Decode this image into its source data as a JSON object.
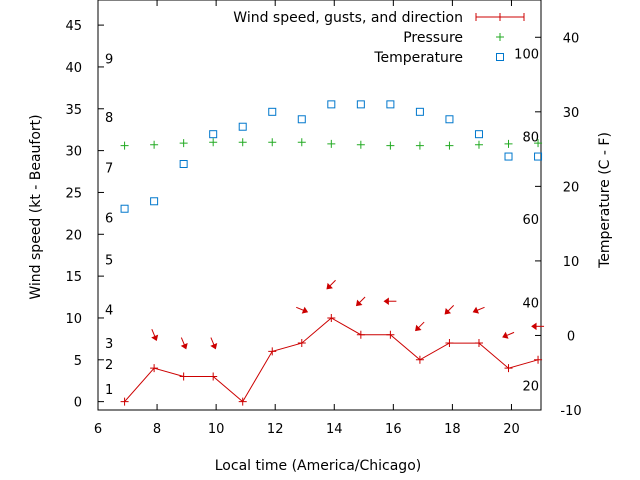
{
  "chart_data": {
    "type": "line",
    "xlabel": "Local time (America/Chicago)",
    "ylabel": "Wind speed (kt - Beaufort)",
    "y2label": "Temperature (C - F)",
    "xlim": [
      6,
      21
    ],
    "ylim": [
      -1,
      48
    ],
    "y2lim": [
      -10,
      45
    ],
    "x_ticks": [
      "6",
      "8",
      "10",
      "12",
      "14",
      "16",
      "18",
      "20"
    ],
    "y_ticks": [
      "0",
      "5",
      "10",
      "15",
      "20",
      "25",
      "30",
      "35",
      "40",
      "45"
    ],
    "y2_ticks": [
      "-10",
      "0",
      "10",
      "20",
      "30",
      "40"
    ],
    "beaufort_labels": [
      {
        "label": "1",
        "kt": 1.5
      },
      {
        "label": "2",
        "kt": 4.5
      },
      {
        "label": "3",
        "kt": 7
      },
      {
        "label": "4",
        "kt": 11
      },
      {
        "label": "5",
        "kt": 17
      },
      {
        "label": "6",
        "kt": 22
      },
      {
        "label": "7",
        "kt": 28
      },
      {
        "label": "8",
        "kt": 34
      },
      {
        "label": "9",
        "kt": 41
      }
    ],
    "fahrenheit_labels": [
      {
        "label": "20",
        "c": -6.7
      },
      {
        "label": "40",
        "c": 4.4
      },
      {
        "label": "60",
        "c": 15.6
      },
      {
        "label": "80",
        "c": 26.7
      },
      {
        "label": "100",
        "c": 37.8
      }
    ],
    "legend": {
      "wind": "Wind speed, gusts, and direction",
      "pressure": "Pressure",
      "temperature": "Temperature"
    },
    "colors": {
      "wind": "#cc0000",
      "pressure": "#22aa22",
      "temperature": "#0077cc"
    },
    "series": [
      {
        "name": "Wind speed, gusts, and direction",
        "axis": "y",
        "x": [
          6.9,
          7.9,
          8.9,
          9.9,
          10.9,
          11.9,
          12.9,
          13.9,
          14.9,
          15.9,
          16.9,
          17.9,
          18.9,
          19.9,
          20.9
        ],
        "y": [
          0,
          4,
          3,
          3,
          0,
          6,
          7,
          10,
          8,
          8,
          5,
          7,
          7,
          4,
          5
        ]
      },
      {
        "name": "Pressure",
        "axis": "y",
        "x": [
          6.9,
          7.9,
          8.9,
          9.9,
          10.9,
          11.9,
          12.9,
          13.9,
          14.9,
          15.9,
          16.9,
          17.9,
          18.9,
          19.9,
          20.9
        ],
        "y": [
          30.6,
          30.7,
          30.9,
          31.0,
          31.0,
          31.0,
          31.0,
          30.8,
          30.7,
          30.6,
          30.6,
          30.6,
          30.7,
          30.8,
          30.9
        ]
      },
      {
        "name": "Temperature",
        "axis": "y2",
        "x": [
          6.9,
          7.9,
          8.9,
          9.9,
          10.9,
          11.9,
          12.9,
          13.9,
          14.9,
          15.9,
          16.9,
          17.9,
          18.9,
          19.9,
          20.9
        ],
        "y": [
          17,
          18,
          23,
          27,
          28,
          30,
          29,
          31,
          31,
          31,
          30,
          29,
          27,
          24,
          24
        ]
      }
    ],
    "wind_direction_arrows": [
      {
        "x": 7.9,
        "kt": 8,
        "dir": "NNW"
      },
      {
        "x": 8.9,
        "kt": 7,
        "dir": "NNW"
      },
      {
        "x": 9.9,
        "kt": 7,
        "dir": "NNW"
      },
      {
        "x": 12.9,
        "kt": 11,
        "dir": "WNW"
      },
      {
        "x": 13.9,
        "kt": 14,
        "dir": "NE"
      },
      {
        "x": 14.9,
        "kt": 12,
        "dir": "NE"
      },
      {
        "x": 15.9,
        "kt": 12,
        "dir": "E"
      },
      {
        "x": 16.9,
        "kt": 9,
        "dir": "NE"
      },
      {
        "x": 17.9,
        "kt": 11,
        "dir": "NE"
      },
      {
        "x": 18.9,
        "kt": 11,
        "dir": "ENE"
      },
      {
        "x": 19.9,
        "kt": 8,
        "dir": "ENE"
      },
      {
        "x": 20.9,
        "kt": 9,
        "dir": "E"
      }
    ]
  }
}
